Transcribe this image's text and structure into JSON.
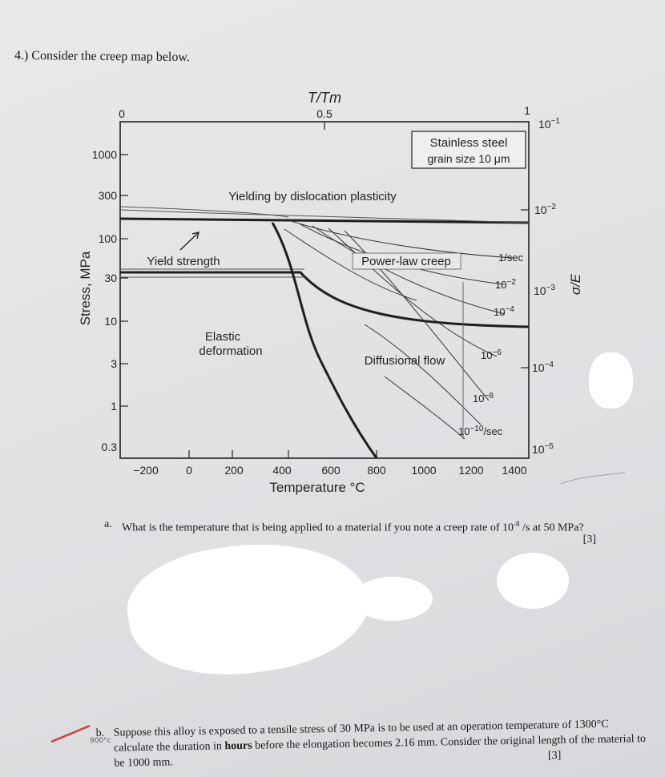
{
  "question": {
    "header": "4.) Consider the creep map below."
  },
  "chart_data": {
    "type": "diagram",
    "kind": "deformation mechanism map",
    "material_label_line1": "Stainless steel",
    "material_label_line2": "grain size 10 μm",
    "top_axis_title": "T/Tm",
    "top_ticks": [
      "0",
      "0.5",
      "1"
    ],
    "left_axis_title": "Stress, MPa",
    "left_ticks": [
      "1000",
      "300",
      "100",
      "30",
      "10",
      "3",
      "1",
      "0.3"
    ],
    "right_axis_title": "σ/E",
    "right_ticks": [
      {
        "base": "10",
        "exp": "−1"
      },
      {
        "base": "10",
        "exp": "−2"
      },
      {
        "base": "10",
        "exp": "−3"
      },
      {
        "base": "10",
        "exp": "−4"
      },
      {
        "base": "10",
        "exp": "−5"
      }
    ],
    "bottom_axis_title": "Temperature °C",
    "bottom_ticks": [
      "−200",
      "0",
      "200",
      "400",
      "600",
      "800",
      "1000",
      "1200",
      "1400"
    ],
    "regions": {
      "yielding": "Yielding by dislocation plasticity",
      "yield_strength": "Yield strength",
      "power_law": "Power-law creep",
      "elastic_line1": "Elastic",
      "elastic_line2": "deformation",
      "diffusional": "Diffusional flow"
    },
    "strain_rate_labels": [
      {
        "base": "1/sec",
        "exp": ""
      },
      {
        "base": "10",
        "exp": "−2"
      },
      {
        "base": "10",
        "exp": "−4"
      },
      {
        "base": "10",
        "exp": "−6"
      },
      {
        "base": "10",
        "exp": "−8"
      },
      {
        "base": "10",
        "exp": "−10",
        "suffix": "/sec"
      }
    ]
  },
  "part_a": {
    "letter": "a.",
    "text_1": "What is the temperature that is being applied to a material if you note a creep rate of 10",
    "exp": "-8",
    "text_2": " /s at 50 MPa?",
    "marks": "[3]"
  },
  "part_b": {
    "letter": "b.",
    "text_1": "Suppose this alloy is exposed to a tensile stress of 30 MPa is to be used at an operation temperature of ",
    "text_2": "1300°C calculate the duration in ",
    "bold": "hours",
    "text_3": " before the elongation becomes 2.16 mm. Consider the original length of the material to be 1000 mm.",
    "marks": "[3]",
    "handwritten": "900°c"
  }
}
